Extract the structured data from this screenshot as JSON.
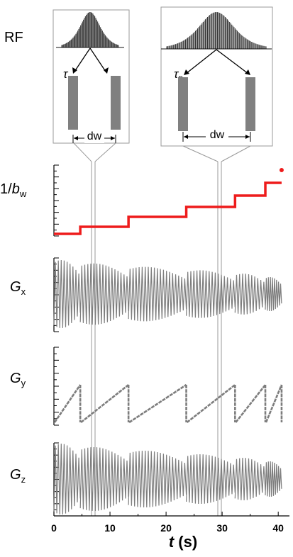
{
  "labels": {
    "rf": "RF",
    "bw": {
      "prefix": "1/",
      "main": "b",
      "sub": "w"
    },
    "gx": {
      "main": "G",
      "sub": "x"
    },
    "gy": {
      "main": "G",
      "sub": "y"
    },
    "gz": {
      "main": "G",
      "sub": "z"
    },
    "tau": {
      "main": "τ",
      "sub": "p"
    },
    "dw": "dw",
    "xaxis": {
      "main": "t",
      "unit": " (s)"
    }
  },
  "x_ticks": [
    "0",
    "10",
    "20",
    "30",
    "40"
  ],
  "x_range": [
    0,
    42
  ],
  "segment_boundaries_s": [
    0,
    4.7,
    13.3,
    23.6,
    32.3,
    37.7,
    40.6
  ],
  "insets": [
    {
      "name": "inset-short-dw",
      "marker_time_s": 7.2,
      "pulses": 60
    },
    {
      "name": "inset-long-dw",
      "marker_time_s": 30.3,
      "pulses": 90
    }
  ],
  "colors": {
    "red": "#ee1c1c",
    "gray": "#7d7d7d",
    "box": "#999999",
    "bar": "#808080"
  }
}
